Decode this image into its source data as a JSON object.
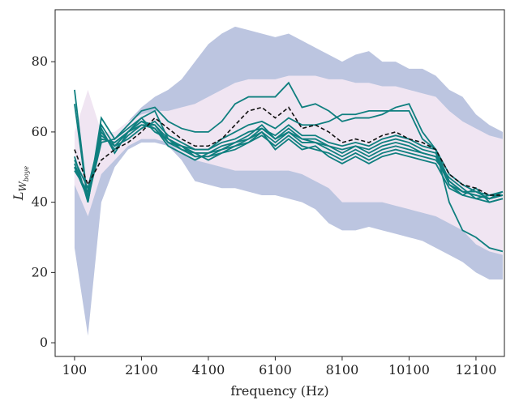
{
  "chart_data": {
    "type": "line",
    "x_label": "frequency (Hz)",
    "y_label": {
      "main": "L",
      "sub": "W",
      "subsub": "boye"
    },
    "x": [
      100,
      500,
      900,
      1300,
      1700,
      2100,
      2500,
      2900,
      3300,
      3700,
      4100,
      4500,
      4900,
      5300,
      5700,
      6100,
      6500,
      6900,
      7300,
      7700,
      8100,
      8500,
      8900,
      9300,
      9700,
      10100,
      10500,
      10900,
      11300,
      11700,
      12100,
      12500,
      12900
    ],
    "xlim": [
      -480,
      12950
    ],
    "xticks": [
      100,
      2100,
      4100,
      6100,
      8100,
      10100,
      12100
    ],
    "ylim": [
      -3.9,
      94.8
    ],
    "yticks": [
      0,
      20,
      40,
      60,
      80
    ],
    "bands": [
      {
        "color": "#bcc5e0",
        "upper": [
          53,
          55,
          52,
          58,
          63,
          67,
          70,
          72,
          75,
          80,
          85,
          88,
          90,
          89,
          88,
          87,
          88,
          86,
          84,
          82,
          80,
          82,
          83,
          80,
          80,
          78,
          78,
          76,
          72,
          70,
          65,
          62,
          60
        ],
        "lower": [
          27,
          2,
          40,
          50,
          55,
          57,
          57,
          56,
          52,
          46,
          45,
          44,
          44,
          43,
          42,
          42,
          41,
          40,
          38,
          34,
          32,
          32,
          33,
          32,
          31,
          30,
          29,
          27,
          25,
          23,
          20,
          18,
          18
        ]
      },
      {
        "color": "#f0e5f2",
        "upper": [
          60,
          72,
          60,
          60,
          63,
          65,
          66,
          66,
          67,
          68,
          70,
          72,
          74,
          75,
          75,
          75,
          76,
          76,
          76,
          75,
          75,
          74,
          74,
          73,
          73,
          72,
          71,
          70,
          66,
          63,
          61,
          59,
          58
        ],
        "lower": [
          45,
          36,
          48,
          52,
          56,
          58,
          58,
          57,
          54,
          52,
          51,
          50,
          49,
          49,
          49,
          49,
          49,
          48,
          46,
          44,
          40,
          40,
          40,
          40,
          39,
          38,
          37,
          36,
          34,
          32,
          28,
          26,
          25
        ]
      }
    ],
    "series": [
      {
        "color": "#0f7f7f",
        "values": [
          72,
          40,
          64,
          58,
          62,
          66,
          67,
          63,
          61,
          60,
          60,
          63,
          68,
          70,
          70,
          70,
          74,
          67,
          68,
          66,
          63,
          64,
          64,
          65,
          67,
          68,
          60,
          55,
          40,
          32,
          30,
          27,
          26
        ]
      },
      {
        "color": "#0f7f7f",
        "values": [
          68,
          40,
          62,
          56,
          60,
          64,
          66,
          58,
          56,
          55,
          55,
          58,
          60,
          62,
          63,
          61,
          64,
          62,
          62,
          63,
          65,
          65,
          66,
          66,
          66,
          66,
          58,
          55,
          46,
          43,
          43,
          41,
          43
        ]
      },
      {
        "color": "#0f7f7f",
        "values": [
          50,
          42,
          58,
          57,
          60,
          63,
          62,
          57,
          56,
          53,
          53,
          55,
          56,
          58,
          60,
          57,
          60,
          57,
          57,
          55,
          53,
          55,
          53,
          55,
          56,
          55,
          54,
          53,
          46,
          43,
          42,
          41,
          42
        ]
      },
      {
        "color": "#0f7f7f",
        "values": [
          52,
          44,
          60,
          55,
          59,
          62,
          61,
          56,
          54,
          52,
          54,
          56,
          57,
          59,
          62,
          58,
          61,
          58,
          58,
          56,
          55,
          56,
          55,
          57,
          58,
          57,
          55,
          54,
          45,
          42,
          44,
          40,
          41
        ]
      },
      {
        "color": "#0f7f7f",
        "values": [
          51,
          41,
          57,
          58,
          61,
          64,
          60,
          58,
          55,
          54,
          52,
          54,
          55,
          57,
          59,
          56,
          59,
          56,
          55,
          54,
          52,
          54,
          52,
          54,
          55,
          54,
          53,
          52,
          47,
          44,
          41,
          42,
          42
        ]
      },
      {
        "color": "#0f7f7f",
        "values": [
          49,
          43,
          59,
          56,
          58,
          61,
          63,
          59,
          57,
          55,
          55,
          57,
          58,
          60,
          61,
          59,
          62,
          59,
          59,
          57,
          56,
          57,
          56,
          58,
          59,
          58,
          56,
          55,
          48,
          45,
          43,
          42,
          43
        ]
      },
      {
        "color": "#0f7f7f",
        "values": [
          53,
          40,
          61,
          54,
          60,
          63,
          61,
          57,
          55,
          53,
          53,
          54,
          56,
          57,
          60,
          55,
          58,
          55,
          56,
          53,
          51,
          53,
          51,
          53,
          54,
          53,
          52,
          51,
          44,
          42,
          41,
          40,
          41
        ]
      },
      {
        "color": "#0f7f7f",
        "values": [
          50,
          41,
          58,
          57,
          60,
          62,
          62,
          58,
          56,
          54,
          54,
          55,
          57,
          58,
          61,
          58,
          60,
          58,
          57,
          56,
          54,
          56,
          54,
          56,
          57,
          56,
          54,
          53,
          45,
          43,
          42,
          41,
          42
        ]
      },
      {
        "color": "#111111",
        "dashed": true,
        "values": [
          55,
          45,
          52,
          55,
          57,
          60,
          64,
          61,
          58,
          56,
          56,
          58,
          62,
          66,
          67,
          64,
          67,
          61,
          62,
          60,
          57,
          58,
          57,
          59,
          60,
          58,
          57,
          55,
          48,
          45,
          44,
          42,
          42
        ]
      }
    ]
  }
}
